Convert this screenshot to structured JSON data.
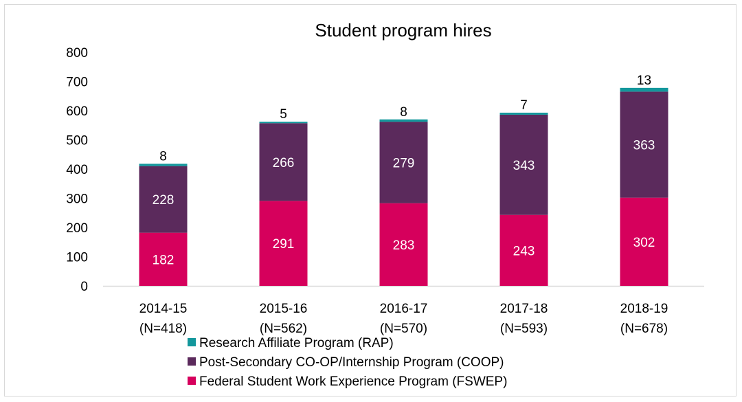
{
  "chart_data": {
    "type": "bar",
    "stacked": true,
    "title": "Student program hires",
    "categories": [
      [
        "2014-15",
        "(N=418)"
      ],
      [
        "2015-16",
        "(N=562)"
      ],
      [
        "2016-17",
        "(N=570)"
      ],
      [
        "2017-18",
        "(N=593)"
      ],
      [
        "2018-19",
        "(N=678)"
      ]
    ],
    "series": [
      {
        "name": "Federal Student Work Experience Program (FSWEP)",
        "color": "#d6005c",
        "values": [
          182,
          291,
          283,
          243,
          302
        ]
      },
      {
        "name": "Post-Secondary CO-OP/Internship Program (COOP)",
        "color": "#5b2a5c",
        "values": [
          228,
          266,
          279,
          343,
          363
        ]
      },
      {
        "name": "Research Affiliate Program (RAP)",
        "color": "#13979c",
        "values": [
          8,
          5,
          8,
          7,
          13
        ]
      }
    ],
    "ylim": [
      0,
      800
    ],
    "yticks": [
      0,
      100,
      200,
      300,
      400,
      500,
      600,
      700,
      800
    ],
    "legend_position": "bottom-left",
    "legend_order": [
      2,
      1,
      0
    ],
    "grid": false
  }
}
